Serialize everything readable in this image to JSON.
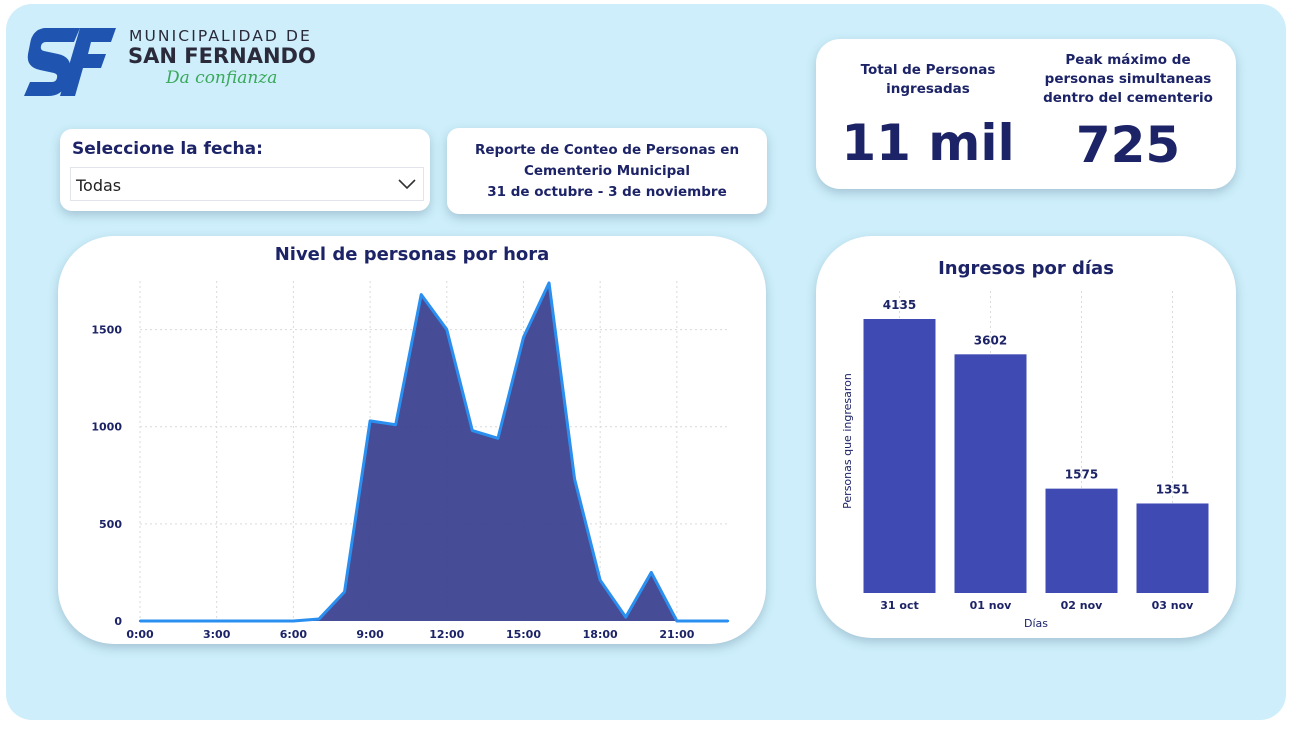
{
  "logo": {
    "mark": "SF",
    "line1": "MUNICIPALIDAD DE",
    "line2": "SAN FERNANDO",
    "tagline": "Da confianza"
  },
  "filter": {
    "title": "Seleccione la fecha:",
    "value": "Todas",
    "icon": "chevron-down-icon"
  },
  "report": {
    "line1": "Reporte de Conteo de Personas en",
    "line2": "Cementerio Municipal",
    "line3": "31 de octubre - 3 de noviembre"
  },
  "kpis": {
    "total_label": "Total de Personas\ningresadas",
    "total_value": "11 mil",
    "peak_label": "Peak máximo de\npersonas simultaneas\ndentro del cementerio",
    "peak_value": "725"
  },
  "colors": {
    "background": "#cdeefa",
    "title": "#1c2366",
    "area_fill": "#3c428f",
    "area_line": "#2b8ff0",
    "bar": "#3f4bb3"
  },
  "chart_data": [
    {
      "type": "area",
      "title": "Nivel de personas por hora",
      "xlabel": "",
      "ylabel": "",
      "x": [
        0,
        1,
        2,
        3,
        4,
        5,
        6,
        7,
        8,
        9,
        10,
        11,
        12,
        13,
        14,
        15,
        16,
        17,
        18,
        19,
        20,
        21,
        22,
        23
      ],
      "xticks": [
        "0:00",
        "3:00",
        "6:00",
        "9:00",
        "12:00",
        "15:00",
        "18:00",
        "21:00"
      ],
      "xtick_values": [
        0,
        3,
        6,
        9,
        12,
        15,
        18,
        21
      ],
      "yticks": [
        0,
        500,
        1000,
        1500
      ],
      "values": [
        0,
        0,
        0,
        0,
        0,
        0,
        0,
        10,
        150,
        1030,
        1010,
        1680,
        1500,
        980,
        940,
        1460,
        1740,
        730,
        210,
        20,
        250,
        0,
        0,
        0
      ],
      "ylim": [
        0,
        1750
      ],
      "xlim": [
        0,
        23
      ],
      "grid": true
    },
    {
      "type": "bar",
      "title": "Ingresos por días",
      "xlabel": "Días",
      "ylabel": "Personas que ingresaron",
      "categories": [
        "31 oct",
        "01 nov",
        "02 nov",
        "03 nov"
      ],
      "values": [
        4135,
        3602,
        1575,
        1351
      ],
      "ylim": [
        0,
        4135
      ],
      "grid": true
    }
  ]
}
